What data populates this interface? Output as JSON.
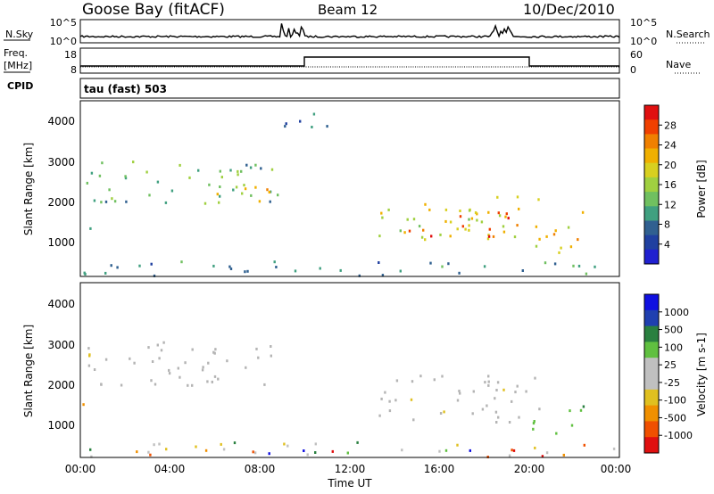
{
  "header": {
    "station": "Goose Bay (fitACF)",
    "beam": "Beam 12",
    "date": "10/Dec/2010"
  },
  "top_panels": {
    "nsky_label": "N.Sky",
    "nsky_ticks": [
      "10^5",
      "10^0"
    ],
    "nsearch_label": "N.Search",
    "nsearch_ticks": [
      "10^5",
      "10^0"
    ],
    "freq_label": "Freq.",
    "freq_unit": "[MHz]",
    "freq_ticks": [
      "18",
      "8"
    ],
    "nave_label": "Nave",
    "nave_ticks": [
      "60",
      "0"
    ],
    "cpid_label": "CPID",
    "cpid_value": "tau (fast) 503"
  },
  "colors": {
    "power_scale": [
      "#2020d0",
      "#2040a0",
      "#306090",
      "#40a080",
      "#70c060",
      "#a0d040",
      "#d8d020",
      "#f0b000",
      "#f08000",
      "#f04000",
      "#e01010"
    ],
    "velocity_scale": [
      "#1010e0",
      "#2040b0",
      "#2a8040",
      "#60c040",
      "#c0c0c0",
      "#c0c0c0",
      "#e0c020",
      "#f09000",
      "#f05000",
      "#e01010"
    ],
    "ground_scatter": "#b4b4b4"
  },
  "chart_data": [
    {
      "type": "heatmap",
      "name": "power",
      "ylabel": "Slant Range [km]",
      "yticks": [
        "4000",
        "3000",
        "2000",
        "1000"
      ],
      "ylim": [
        200,
        4500
      ],
      "colorbar_label": "Power [dB]",
      "colorbar_ticks": [
        "28",
        "24",
        "20",
        "16",
        "12",
        "8",
        "4"
      ],
      "colorbar_range": [
        0,
        32
      ],
      "regions": [
        {
          "t_start": 0.0,
          "t_end": 8.8,
          "range_start": 2000,
          "range_end": 3100,
          "level_db": 12
        },
        {
          "t_start": 6.0,
          "t_end": 8.8,
          "range_start": 1900,
          "range_end": 2500,
          "level_db": 20
        },
        {
          "t_start": 0.0,
          "t_end": 0.5,
          "range_start": 1350,
          "range_end": 1600,
          "level_db": 10
        },
        {
          "t_start": 13.0,
          "t_end": 20.5,
          "range_start": 1100,
          "range_end": 2300,
          "level_db": 18
        },
        {
          "t_start": 14.0,
          "t_end": 19.5,
          "range_start": 1200,
          "range_end": 1800,
          "level_db": 28
        },
        {
          "t_start": 20.0,
          "t_end": 22.5,
          "range_start": 800,
          "range_end": 1800,
          "level_db": 20
        },
        {
          "t_start": 0.0,
          "t_end": 24.0,
          "range_start": 200,
          "range_end": 600,
          "level_db": 8
        },
        {
          "t_start": 9.0,
          "t_end": 11.0,
          "range_start": 3800,
          "range_end": 4500,
          "level_db": 6
        }
      ]
    },
    {
      "type": "heatmap",
      "name": "velocity",
      "ylabel": "Slant Range [km]",
      "yticks": [
        "4000",
        "3000",
        "2000",
        "1000"
      ],
      "ylim": [
        200,
        4500
      ],
      "xlabel": "Time UT",
      "xticks": [
        "00:00",
        "04:00",
        "08:00",
        "12:00",
        "16:00",
        "20:00",
        "00:00"
      ],
      "xlim": [
        0,
        24
      ],
      "colorbar_label": "Velocity [m s-1]",
      "colorbar_ticks": [
        "1000",
        "500",
        "100",
        "25",
        "-25",
        "-100",
        "-500",
        "-1000"
      ],
      "regions": [
        {
          "t_start": 0.0,
          "t_end": 8.8,
          "range_start": 2000,
          "range_end": 3100,
          "level": "ground"
        },
        {
          "t_start": 13.0,
          "t_end": 20.5,
          "range_start": 1100,
          "range_end": 2300,
          "level": "ground"
        },
        {
          "t_start": 20.0,
          "t_end": 22.5,
          "range_start": 800,
          "range_end": 1500,
          "level": "positive"
        },
        {
          "t_start": 0.0,
          "t_end": 0.5,
          "range_start": 1350,
          "range_end": 1600,
          "level": "negative"
        },
        {
          "t_start": 0.0,
          "t_end": 24.0,
          "range_start": 200,
          "range_end": 600,
          "level": "mixed"
        }
      ]
    }
  ]
}
